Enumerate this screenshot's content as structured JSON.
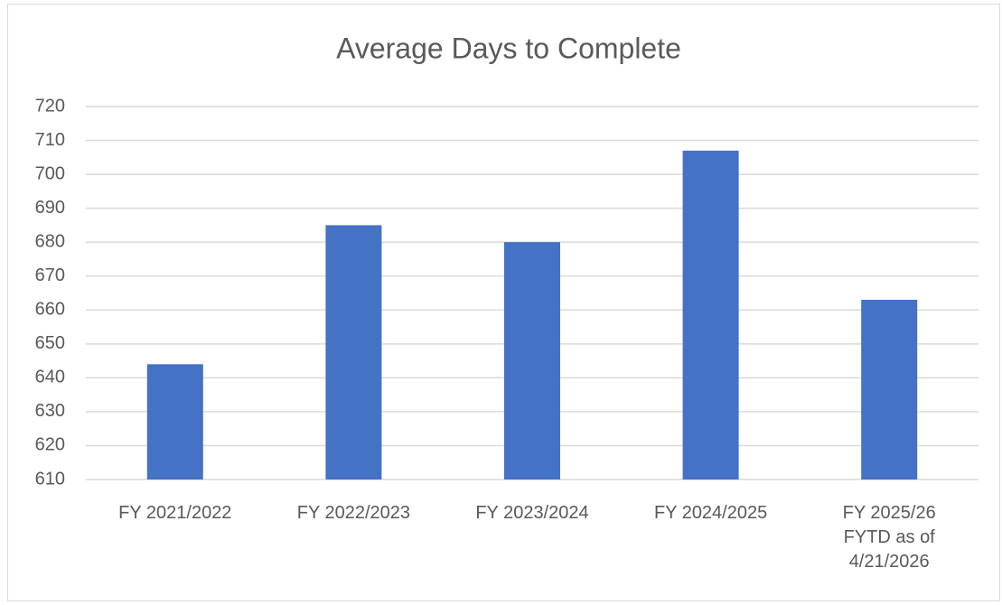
{
  "chart_data": {
    "type": "bar",
    "title": "Average Days to Complete",
    "categories": [
      "FY 2021/2022",
      "FY 2022/2023",
      "FY 2023/2024",
      "FY 2024/2025",
      "FY 2025/26 FYTD as of 4/21/2026"
    ],
    "values": [
      644,
      685,
      680,
      707,
      663
    ],
    "color": "#4472c4",
    "ylim": [
      610,
      720
    ],
    "yticks": [
      610,
      620,
      630,
      640,
      650,
      660,
      670,
      680,
      690,
      700,
      710,
      720
    ],
    "grid": true
  }
}
